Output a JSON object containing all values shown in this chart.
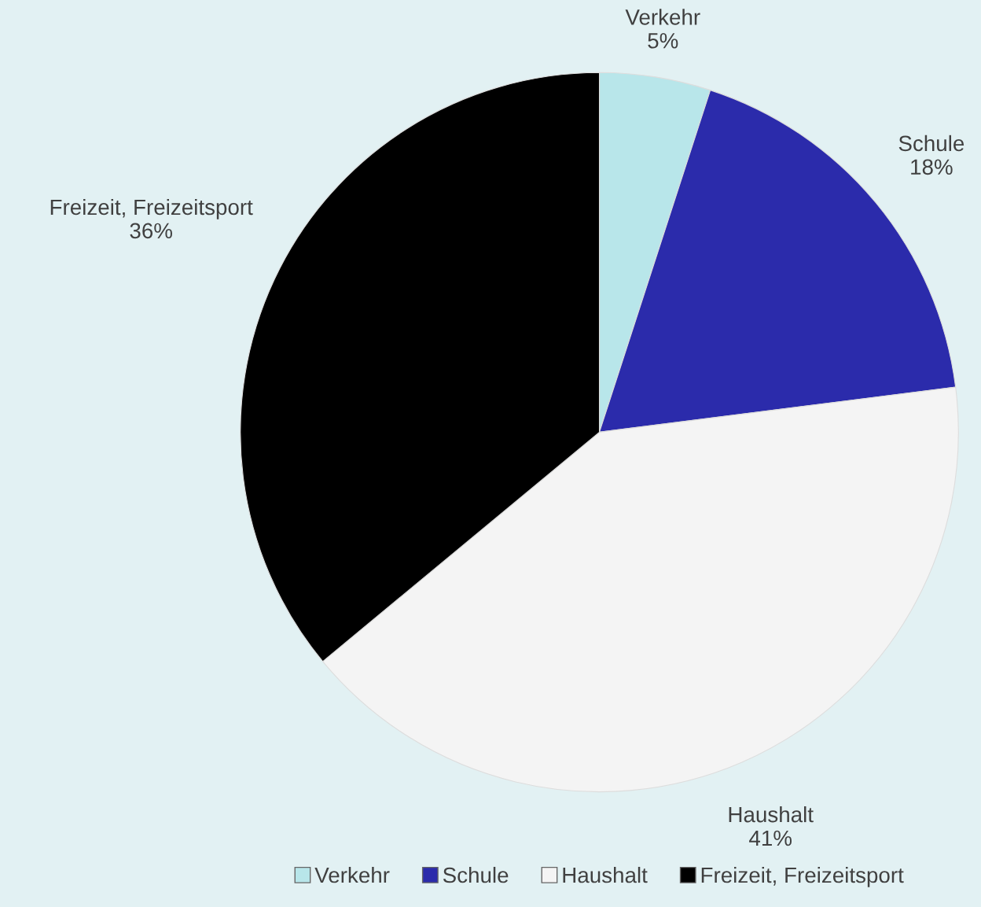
{
  "chart_data": {
    "type": "pie",
    "categories": [
      "Verkehr",
      "Schule",
      "Haushalt",
      "Freizeit, Freizeitsport"
    ],
    "values": [
      5,
      18,
      41,
      36
    ],
    "value_labels": [
      "5%",
      "18%",
      "41%",
      "36%"
    ],
    "colors": [
      "#b8e6ea",
      "#2b2bab",
      "#f4f4f4",
      "#000000"
    ],
    "legend": "bottom"
  }
}
